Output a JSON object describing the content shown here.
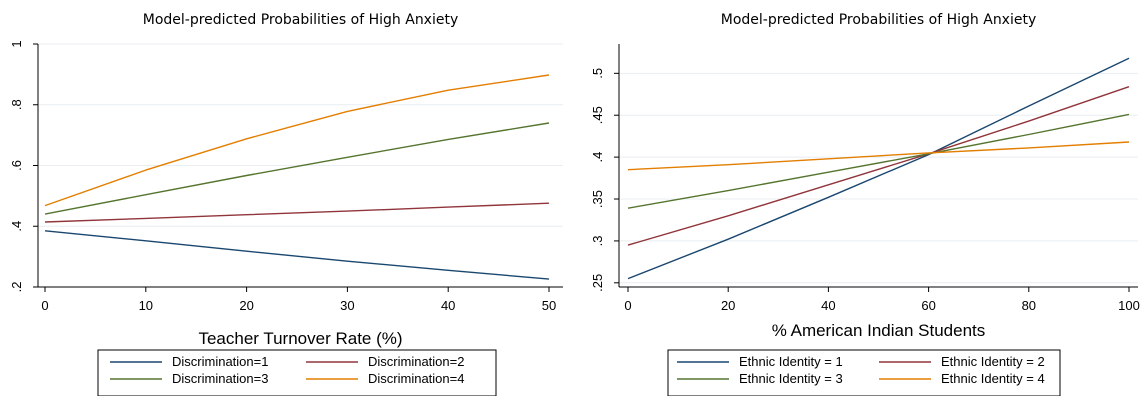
{
  "chart_data": [
    {
      "type": "line",
      "title": "Model-predicted Probabilities of High Anxiety",
      "xlabel": "Teacher Turnover Rate (%)",
      "ylabel": "",
      "xlim": [
        0,
        50
      ],
      "ylim": [
        0.2,
        1.0
      ],
      "x_ticks": [
        0,
        10,
        20,
        30,
        40,
        50
      ],
      "x_tick_labels": [
        "0",
        "10",
        "20",
        "30",
        "40",
        "50"
      ],
      "y_ticks": [
        0.2,
        0.4,
        0.6,
        0.8,
        1.0
      ],
      "y_tick_labels": [
        ".2",
        ".4",
        ".6",
        ".8",
        "1"
      ],
      "grid": true,
      "legend_position": "bottom",
      "x": [
        0,
        10,
        20,
        30,
        40,
        50
      ],
      "series": [
        {
          "name": "Discrimination=1",
          "color": "#1a476f",
          "values": [
            0.385,
            0.352,
            0.318,
            0.285,
            0.255,
            0.226
          ]
        },
        {
          "name": "Discrimination=2",
          "color": "#90353b",
          "values": [
            0.414,
            0.426,
            0.438,
            0.45,
            0.463,
            0.476
          ]
        },
        {
          "name": "Discrimination=3",
          "color": "#55752f",
          "values": [
            0.44,
            0.504,
            0.567,
            0.627,
            0.686,
            0.74
          ]
        },
        {
          "name": "Discrimination=4",
          "color": "#e37e00",
          "values": [
            0.468,
            0.585,
            0.688,
            0.778,
            0.848,
            0.898
          ]
        }
      ]
    },
    {
      "type": "line",
      "title": "Model-predicted Probabilities of High Anxiety",
      "xlabel": "% American Indian Students",
      "ylabel": "",
      "xlim": [
        0,
        100
      ],
      "ylim": [
        0.245,
        0.535
      ],
      "x_ticks": [
        0,
        20,
        40,
        60,
        80,
        100
      ],
      "x_tick_labels": [
        "0",
        "20",
        "40",
        "60",
        "80",
        "100"
      ],
      "y_ticks": [
        0.25,
        0.3,
        0.35,
        0.4,
        0.45,
        0.5
      ],
      "y_tick_labels": [
        ".25",
        ".3",
        ".35",
        ".4",
        ".45",
        ".5"
      ],
      "grid": true,
      "legend_position": "bottom",
      "x": [
        0,
        20,
        40,
        60,
        80,
        100
      ],
      "series": [
        {
          "name": "Ethnic Identity = 1",
          "color": "#1a476f",
          "values": [
            0.255,
            0.302,
            0.352,
            0.403,
            0.461,
            0.518
          ]
        },
        {
          "name": "Ethnic Identity = 2",
          "color": "#90353b",
          "values": [
            0.295,
            0.33,
            0.367,
            0.404,
            0.443,
            0.484
          ]
        },
        {
          "name": "Ethnic Identity = 3",
          "color": "#55752f",
          "values": [
            0.339,
            0.36,
            0.382,
            0.404,
            0.427,
            0.451
          ]
        },
        {
          "name": "Ethnic Identity = 4",
          "color": "#e37e00",
          "values": [
            0.385,
            0.391,
            0.398,
            0.405,
            0.411,
            0.418
          ]
        }
      ]
    }
  ]
}
